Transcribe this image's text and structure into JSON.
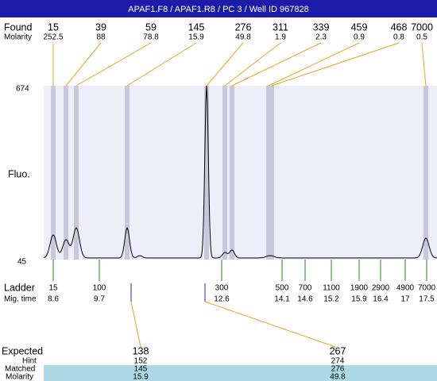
{
  "header": {
    "title": "APAF1.F8 / APAF1.R8 / PC 3 / Well ID 967828"
  },
  "found": {
    "label": "Found",
    "sublabel": "Molarity",
    "peaks": [
      {
        "size": "15",
        "molarity": "252.5"
      },
      {
        "size": "39",
        "molarity": "88"
      },
      {
        "size": "59",
        "molarity": "78.8"
      },
      {
        "size": "145",
        "molarity": "15.9"
      },
      {
        "size": "276",
        "molarity": "49.8"
      },
      {
        "size": "311",
        "molarity": "1.9"
      },
      {
        "size": "339",
        "molarity": "2.3"
      },
      {
        "size": "459",
        "molarity": "0.9"
      },
      {
        "size": "468",
        "molarity": "0.8"
      },
      {
        "size": "7000",
        "molarity": "0.5"
      }
    ]
  },
  "axis": {
    "label": "Fluo.",
    "max": "674",
    "min": "45"
  },
  "ladder": {
    "label": "Ladder",
    "sublabel": "Mig. time",
    "items": [
      {
        "size": "15",
        "time": "8.6"
      },
      {
        "size": "100",
        "time": "9.7"
      },
      {
        "size": "300",
        "time": "12.6"
      },
      {
        "size": "500",
        "time": "14.1"
      },
      {
        "size": "700",
        "time": "14.6"
      },
      {
        "size": "1100",
        "time": "15.2"
      },
      {
        "size": "1900",
        "time": "15.9"
      },
      {
        "size": "2900",
        "time": "16.4"
      },
      {
        "size": "4900",
        "time": "17"
      },
      {
        "size": "7000",
        "time": "17.5"
      }
    ]
  },
  "expected": {
    "label": "Expected",
    "hint_label": "Hint",
    "matched_label": "Matched",
    "molarity_label": "Molarity",
    "items": [
      {
        "expected": "138",
        "hint": "152",
        "matched": "145",
        "molarity": "15.9"
      },
      {
        "expected": "267",
        "hint": "274",
        "matched": "276",
        "molarity": "49.8"
      }
    ]
  }
}
